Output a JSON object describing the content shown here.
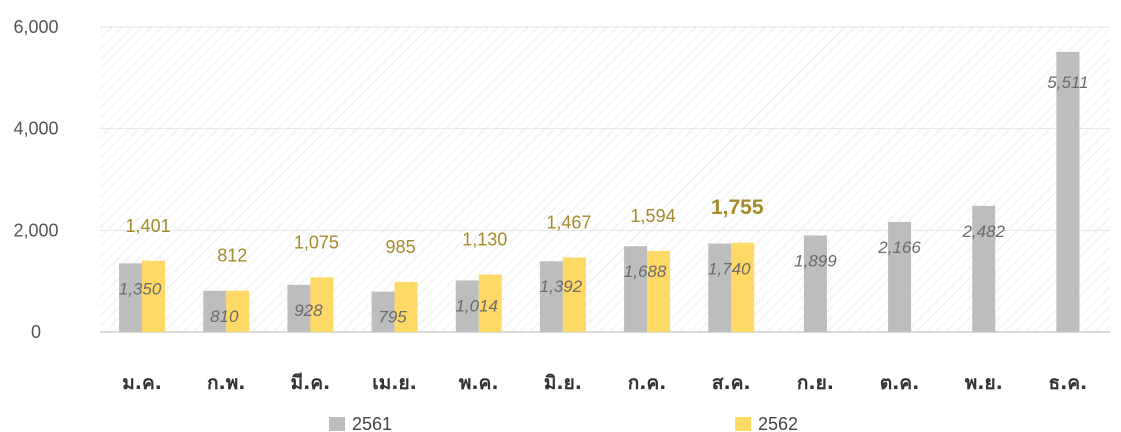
{
  "chart_data": {
    "type": "bar",
    "categories": [
      "ม.ค.",
      "ก.พ.",
      "มี.ค.",
      "เม.ย.",
      "พ.ค.",
      "มิ.ย.",
      "ก.ค.",
      "ส.ค.",
      "ก.ย.",
      "ต.ค.",
      "พ.ย.",
      "ธ.ค."
    ],
    "series": [
      {
        "name": "2561",
        "color": "#bdbdbd",
        "values": [
          1350,
          810,
          928,
          795,
          1014,
          1392,
          1688,
          1740,
          1899,
          2166,
          2482,
          5511
        ],
        "labels": [
          "1,350",
          "810",
          "928",
          "795",
          "1,014",
          "1,392",
          "1,688",
          "1,740",
          "1,899",
          "2,166",
          "2,482",
          "5,511"
        ]
      },
      {
        "name": "2562",
        "color": "#ffd966",
        "values": [
          1401,
          812,
          1075,
          985,
          1130,
          1467,
          1594,
          1755,
          null,
          null,
          null,
          null
        ],
        "labels": [
          "1,401",
          "812",
          "1,075",
          "985",
          "1,130",
          "1,467",
          "1,594",
          "1,755",
          "",
          "",
          "",
          ""
        ]
      }
    ],
    "yticks": [
      "0",
      "2,000",
      "4,000",
      "6,000"
    ],
    "ylim": [
      0,
      6000
    ],
    "title": "",
    "xlabel": "",
    "ylabel": "",
    "grid": true,
    "legend_position": "bottom",
    "highlight_label_category": "ส.ค."
  }
}
